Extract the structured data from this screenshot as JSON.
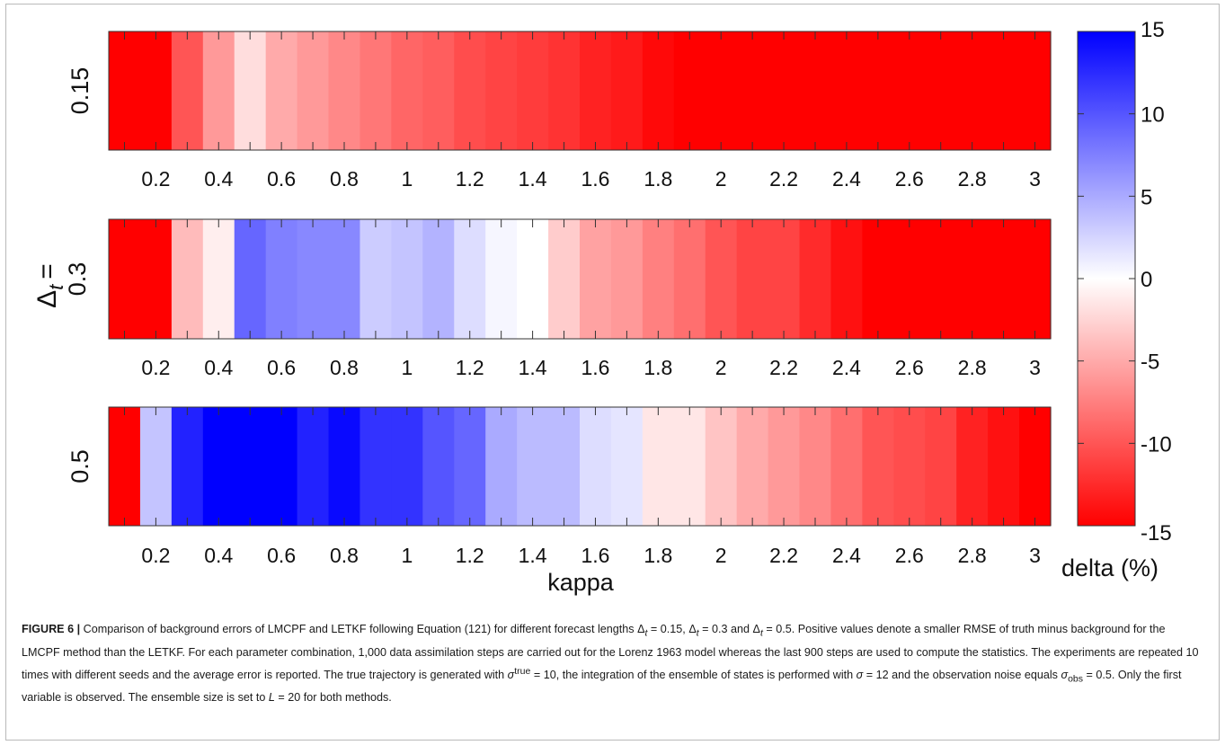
{
  "chart_data": {
    "type": "heatmap",
    "xlabel": "kappa",
    "ylabel_symbol": "Δ",
    "ylabel_sub": "t",
    "ylabel_eq": "=",
    "colorbar_label": "delta (%)",
    "colorbar_ticks": [
      "15",
      "10",
      "5",
      "0",
      "-5",
      "-10",
      "-15"
    ],
    "colorbar_tick_values": [
      15,
      10,
      5,
      0,
      -5,
      -10,
      -15
    ],
    "clim": [
      -15,
      15
    ],
    "colormap": {
      "low": "#ff0000",
      "mid": "#ffffff",
      "high": "#0000ff"
    },
    "panels": [
      {
        "row_label": "0.15",
        "x_tick_labels": [
          "0.2",
          "0.4",
          "0.6",
          "0.8",
          "1",
          "1.2",
          "1.4",
          "1.6",
          "1.8",
          "2",
          "2.2",
          "2.4",
          "2.6",
          "2.8",
          "3"
        ],
        "x": [
          0.1,
          0.2,
          0.3,
          0.4,
          0.5,
          0.6,
          0.7,
          0.8,
          0.9,
          1.0,
          1.1,
          1.2,
          1.3,
          1.4,
          1.5,
          1.6,
          1.7,
          1.8,
          1.9,
          2.0,
          2.1,
          2.2,
          2.3,
          2.4,
          2.5,
          2.6,
          2.7,
          2.8,
          2.9,
          3.0
        ],
        "values": [
          -15,
          -15,
          -10,
          -6,
          -2,
          -5,
          -6,
          -7,
          -8,
          -9,
          -9.5,
          -10.5,
          -11,
          -11.5,
          -12,
          -13,
          -13.5,
          -14.5,
          -15,
          -15,
          -15,
          -15,
          -15,
          -15,
          -15,
          -15,
          -15,
          -15,
          -15,
          -15
        ]
      },
      {
        "row_label": "0.3",
        "x_tick_labels": [
          "0.2",
          "0.4",
          "0.6",
          "0.8",
          "1",
          "1.2",
          "1.4",
          "1.6",
          "1.8",
          "2",
          "2.2",
          "2.4",
          "2.6",
          "2.8",
          "3"
        ],
        "x": [
          0.1,
          0.2,
          0.3,
          0.4,
          0.5,
          0.6,
          0.7,
          0.8,
          0.9,
          1.0,
          1.1,
          1.2,
          1.3,
          1.4,
          1.5,
          1.6,
          1.7,
          1.8,
          1.9,
          2.0,
          2.1,
          2.2,
          2.3,
          2.4,
          2.5,
          2.6,
          2.7,
          2.8,
          2.9,
          3.0
        ],
        "values": [
          -15,
          -15,
          -4,
          -1,
          9,
          7.5,
          7,
          7,
          3,
          3.5,
          4.5,
          2,
          0.5,
          0,
          -3,
          -5.5,
          -6,
          -7.5,
          -8.5,
          -10,
          -11,
          -11,
          -12.5,
          -14,
          -15,
          -15,
          -15,
          -15,
          -15,
          -15
        ]
      },
      {
        "row_label": "0.5",
        "x_tick_labels": [
          "0.2",
          "0.4",
          "0.6",
          "0.8",
          "1",
          "1.2",
          "1.4",
          "1.6",
          "1.8",
          "2",
          "2.2",
          "2.4",
          "2.6",
          "2.8",
          "3"
        ],
        "x": [
          0.1,
          0.2,
          0.3,
          0.4,
          0.5,
          0.6,
          0.7,
          0.8,
          0.9,
          1.0,
          1.1,
          1.2,
          1.3,
          1.4,
          1.5,
          1.6,
          1.7,
          1.8,
          1.9,
          2.0,
          2.1,
          2.2,
          2.3,
          2.4,
          2.5,
          2.6,
          2.7,
          2.8,
          2.9,
          3.0
        ],
        "values": [
          -15,
          3.5,
          13,
          15,
          15,
          15,
          13,
          14.5,
          12,
          12,
          10,
          9,
          5,
          4,
          4,
          2,
          1.5,
          -1.5,
          -1.5,
          -3.5,
          -5,
          -6,
          -7,
          -8.5,
          -10,
          -10.5,
          -11,
          -13,
          -14,
          -15
        ]
      }
    ]
  },
  "caption": {
    "label": "FIGURE 6 |",
    "p1": " Comparison of background errors of LMCPF and LETKF following Equation (121) for different forecast lengths ",
    "dt1": "Δ",
    "dt1_sub": "t",
    "dt1_val": " = 0.15, ",
    "dt2": "Δ",
    "dt2_sub": "t",
    "dt2_val": " = 0.3 and ",
    "dt3": "Δ",
    "dt3_sub": "t",
    "dt3_val": " = 0.5. Positive values denote a smaller RMSE of truth minus background for the LMCPF method than the LETKF. For each parameter combination, 1,000 data assimilation steps are carried out for the Lorenz 1963 model whereas the last 900 steps are used to compute the statistics. The experiments are repeated 10 times with different seeds and the average error is reported. The true trajectory is generated with ",
    "sig_true": "σ",
    "sig_true_sup": "true",
    "p3": " = 10, the integration of the ensemble of states is performed with ",
    "sig": "σ",
    "p4": " = 12 and the observation noise equals ",
    "sig_obs": "σ",
    "sig_obs_sub": "obs",
    "p5": " = 0.5. Only the first variable is observed.  The ensemble size is set to ",
    "L": "L",
    "p6": " = 20 for both methods."
  }
}
